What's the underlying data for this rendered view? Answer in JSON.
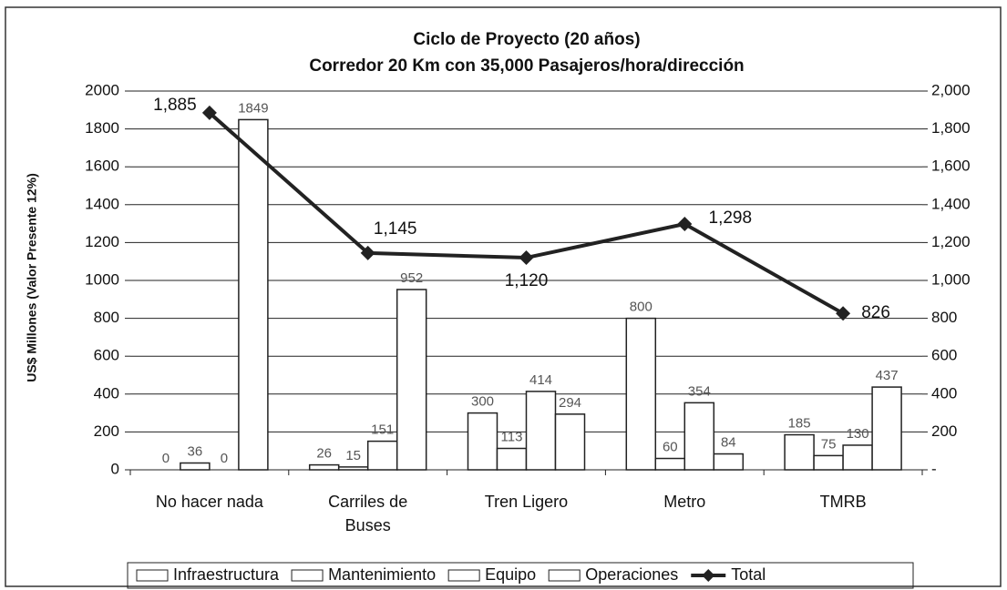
{
  "chart_data": {
    "type": "bar",
    "title": "Ciclo de Proyecto (20 años)",
    "subtitle": "Corredor 20 Km con 35,000 Pasajeros/hora/dirección",
    "y_label": "US$ Millones (Valor Presente 12%)",
    "categories": [
      "No hacer nada",
      "Carriles de Buses",
      "Tren Ligero",
      "Metro",
      "TMRB"
    ],
    "series": [
      {
        "name": "Infraestructura",
        "color": "#ffffff",
        "values": [
          0,
          26,
          300,
          800,
          185
        ]
      },
      {
        "name": "Mantenimiento",
        "color": "#ffffff",
        "values": [
          36,
          15,
          113,
          60,
          75
        ]
      },
      {
        "name": "Equipo",
        "color": "#ffffff",
        "values": [
          0,
          151,
          414,
          354,
          130
        ]
      },
      {
        "name": "Operaciones",
        "color": "#ffffff",
        "values": [
          1849,
          952,
          294,
          84,
          437
        ]
      },
      {
        "name": "Total",
        "type": "line",
        "axis": "y2",
        "color": "#222222",
        "values": [
          1885,
          1145,
          1120,
          1298,
          826
        ],
        "value_labels": [
          "1,885",
          "1,145",
          "1,120",
          "1,298",
          "826"
        ]
      }
    ],
    "ylim": [
      0,
      2000
    ],
    "yticks": [
      0,
      200,
      400,
      600,
      800,
      1000,
      1200,
      1400,
      1600,
      1800,
      2000
    ],
    "y2lim": [
      0,
      2000
    ],
    "y2ticks": [
      {
        "value": 0,
        "label": "-"
      },
      200,
      400,
      600,
      800,
      {
        "value": 1000,
        "label": "1,000"
      },
      {
        "value": 1200,
        "label": "1,200"
      },
      {
        "value": 1400,
        "label": "1,400"
      },
      {
        "value": 1600,
        "label": "1,600"
      },
      {
        "value": 1800,
        "label": "1,800"
      },
      {
        "value": 2000,
        "label": "2,000"
      }
    ],
    "grid": true,
    "legend": "bottom"
  }
}
